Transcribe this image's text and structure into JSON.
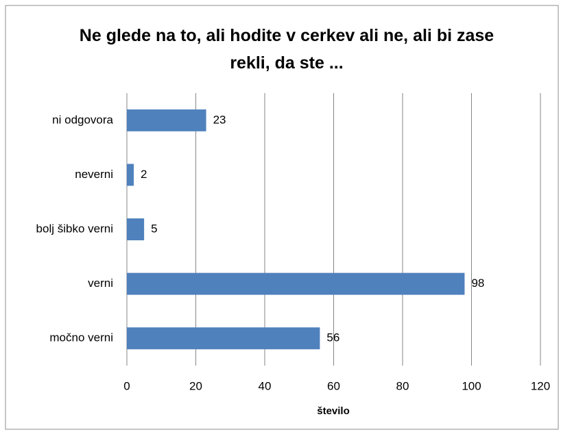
{
  "chart_data": {
    "type": "bar",
    "orientation": "horizontal",
    "title": "Ne glede na to, ali hodite v cerkev ali ne, ali bi zase rekli, da ste ...",
    "x_label": "število",
    "categories": [
      "ni odgovora",
      "neverni",
      "bolj šibko verni",
      "verni",
      "močno verni"
    ],
    "values": [
      23,
      2,
      5,
      98,
      56
    ],
    "color": "#4f81bd",
    "xlim": [
      0,
      120
    ],
    "xticks": [
      0,
      20,
      40,
      60,
      80,
      100,
      120
    ],
    "grid": true
  }
}
